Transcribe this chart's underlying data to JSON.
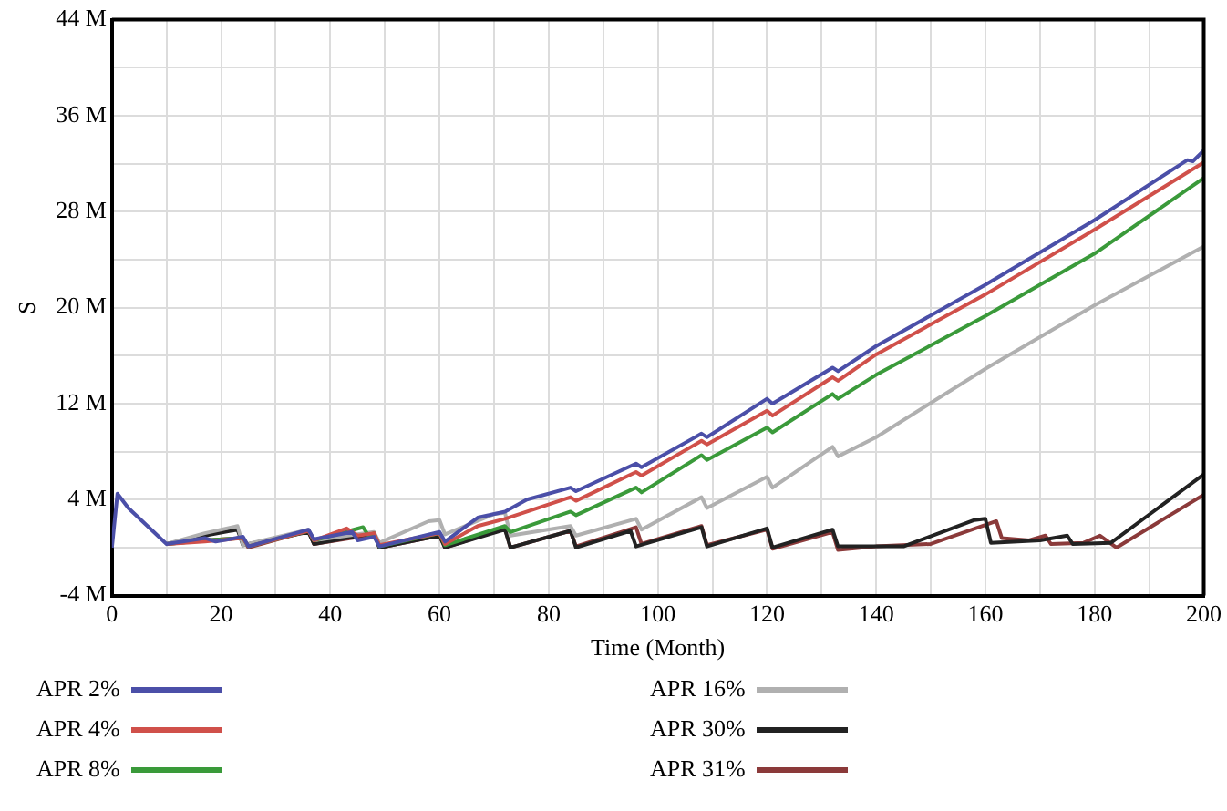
{
  "chart_data": {
    "type": "line",
    "xlabel": "Time (Month)",
    "ylabel": "S",
    "xlim": [
      0,
      200
    ],
    "xticks": [
      0,
      {
        "value": 10,
        "label": null
      },
      20,
      {
        "value": 30,
        "label": null
      },
      40,
      {
        "value": 50,
        "label": null
      },
      60,
      {
        "value": 70,
        "label": null
      },
      80,
      {
        "value": 90,
        "label": null
      },
      100,
      {
        "value": 110,
        "label": null
      },
      120,
      {
        "value": 130,
        "label": null
      },
      140,
      {
        "value": 150,
        "label": null
      },
      160,
      {
        "value": 170,
        "label": null
      },
      180,
      {
        "value": 190,
        "label": null
      },
      200
    ],
    "ylim": [
      -4,
      44
    ],
    "yticks": [
      {
        "value": -4,
        "label": "-4 M"
      },
      {
        "value": 0,
        "label": null
      },
      {
        "value": 4,
        "label": "4 M"
      },
      {
        "value": 8,
        "label": null
      },
      {
        "value": 12,
        "label": "12 M"
      },
      {
        "value": 16,
        "label": null
      },
      {
        "value": 20,
        "label": "20 M"
      },
      {
        "value": 24,
        "label": null
      },
      {
        "value": 28,
        "label": "28 M"
      },
      {
        "value": 32,
        "label": null
      },
      {
        "value": 36,
        "label": "36 M"
      },
      {
        "value": 40,
        "label": null
      },
      {
        "value": 44,
        "label": "44 M"
      }
    ],
    "grid": true,
    "legend": "bottom",
    "marker": "none",
    "line_style": "solid",
    "series": [
      {
        "name": "APR 2%",
        "color": "#4b4fa8",
        "x": [
          0,
          1,
          3,
          10,
          17,
          19,
          24,
          25,
          36,
          37,
          44,
          45,
          48,
          49,
          60,
          61,
          67,
          72,
          76,
          84,
          85,
          96,
          97,
          108,
          109,
          120,
          121,
          132,
          133,
          140,
          160,
          180,
          197,
          198,
          200
        ],
        "values": [
          0,
          4.5,
          3.3,
          0.3,
          0.8,
          0.5,
          0.9,
          0.1,
          1.5,
          0.7,
          1.3,
          0.6,
          0.9,
          0.1,
          1.3,
          0.5,
          2.5,
          3.0,
          4.0,
          5.0,
          4.7,
          7.0,
          6.7,
          9.5,
          9.2,
          12.4,
          12.0,
          15.0,
          14.7,
          16.8,
          21.9,
          27.3,
          32.3,
          32.2,
          33.1
        ]
      },
      {
        "name": "APR 4%",
        "color": "#d0504a",
        "x": [
          10,
          17,
          24,
          25,
          36,
          37,
          43,
          45,
          48,
          49,
          60,
          61,
          67,
          72,
          84,
          85,
          96,
          97,
          108,
          109,
          120,
          121,
          132,
          133,
          140,
          160,
          180,
          200
        ],
        "values": [
          0.3,
          0.5,
          0.8,
          0.1,
          1.4,
          0.6,
          1.6,
          1.0,
          1.2,
          0.2,
          1.2,
          0.3,
          1.8,
          2.4,
          4.2,
          3.9,
          6.3,
          6.0,
          8.9,
          8.6,
          11.4,
          11.0,
          14.2,
          13.9,
          16.1,
          21.1,
          26.5,
          32.1
        ]
      },
      {
        "name": "APR 8%",
        "color": "#3a9a3a",
        "x": [
          10,
          17,
          24,
          25,
          36,
          37,
          46,
          47,
          48,
          49,
          60,
          61,
          72,
          73,
          84,
          85,
          96,
          97,
          108,
          109,
          120,
          121,
          132,
          133,
          140,
          160,
          180,
          200
        ],
        "values": [
          0.3,
          0.6,
          0.8,
          0.1,
          1.4,
          0.6,
          1.7,
          1.0,
          1.2,
          0.1,
          1.2,
          0.2,
          1.8,
          1.3,
          3.0,
          2.7,
          5.0,
          4.6,
          7.7,
          7.3,
          10.0,
          9.6,
          12.8,
          12.4,
          14.4,
          19.3,
          24.5,
          30.8
        ]
      },
      {
        "name": "APR 16%",
        "color": "#b0b0b0",
        "x": [
          10,
          17,
          23,
          24,
          36,
          37,
          48,
          49,
          58,
          60,
          61,
          70,
          72,
          73,
          84,
          85,
          96,
          97,
          108,
          109,
          120,
          121,
          132,
          133,
          140,
          160,
          180,
          200
        ],
        "values": [
          0.3,
          1.2,
          1.8,
          0.2,
          1.5,
          0.6,
          1.3,
          0.4,
          2.2,
          2.3,
          1.1,
          2.8,
          2.9,
          1.0,
          1.8,
          1.0,
          2.4,
          1.5,
          4.2,
          3.3,
          5.9,
          5.0,
          8.4,
          7.6,
          9.2,
          14.9,
          20.2,
          25.1
        ]
      },
      {
        "name": "APR 30%",
        "color": "#222222",
        "x": [
          10,
          17,
          23,
          24,
          36,
          37,
          48,
          49,
          60,
          61,
          72,
          73,
          84,
          85,
          95,
          96,
          108,
          109,
          120,
          121,
          132,
          133,
          145,
          158,
          160,
          161,
          170,
          175,
          176,
          183,
          200
        ],
        "values": [
          0.3,
          1.0,
          1.5,
          0.2,
          1.3,
          0.3,
          1.2,
          0,
          1.0,
          0,
          1.5,
          0,
          1.4,
          0,
          1.4,
          0.1,
          1.7,
          0.1,
          1.6,
          0,
          1.5,
          0.1,
          0.1,
          2.3,
          2.4,
          0.4,
          0.6,
          1.0,
          0.3,
          0.4,
          6.1
        ]
      },
      {
        "name": "APR 31%",
        "color": "#8b3a3a",
        "x": [
          10,
          17,
          24,
          25,
          36,
          37,
          48,
          49,
          60,
          61,
          72,
          73,
          84,
          85,
          96,
          97,
          108,
          109,
          120,
          121,
          132,
          133,
          140,
          150,
          162,
          163,
          168,
          171,
          172,
          178,
          181,
          184,
          200
        ],
        "values": [
          0.3,
          0.6,
          0.8,
          0,
          1.4,
          0.3,
          1.1,
          0,
          1.0,
          0,
          1.6,
          0,
          1.4,
          0.1,
          1.7,
          0.3,
          1.8,
          0.2,
          1.5,
          -0.1,
          1.3,
          -0.2,
          0.1,
          0.3,
          2.2,
          0.8,
          0.6,
          1.0,
          0.3,
          0.4,
          1.0,
          0,
          4.4
        ]
      }
    ]
  }
}
